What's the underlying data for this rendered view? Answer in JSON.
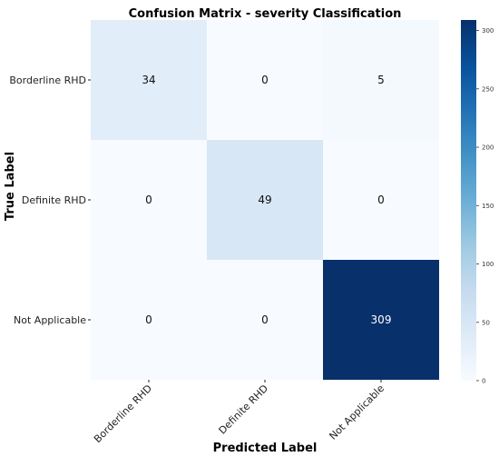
{
  "chart_data": {
    "type": "heatmap",
    "title": "Confusion Matrix - severity Classification",
    "xlabel": "Predicted Label",
    "ylabel": "True Label",
    "x_categories": [
      "Borderline RHD",
      "Definite RHD",
      "Not Applicable"
    ],
    "y_categories": [
      "Borderline RHD",
      "Definite RHD",
      "Not Applicable"
    ],
    "values": [
      [
        34,
        0,
        5
      ],
      [
        0,
        49,
        0
      ],
      [
        0,
        0,
        309
      ]
    ],
    "colormap": "Blues",
    "color_range": [
      0,
      309
    ],
    "colorbar_ticks": [
      0,
      50,
      100,
      150,
      200,
      250,
      300
    ],
    "grid": false
  }
}
